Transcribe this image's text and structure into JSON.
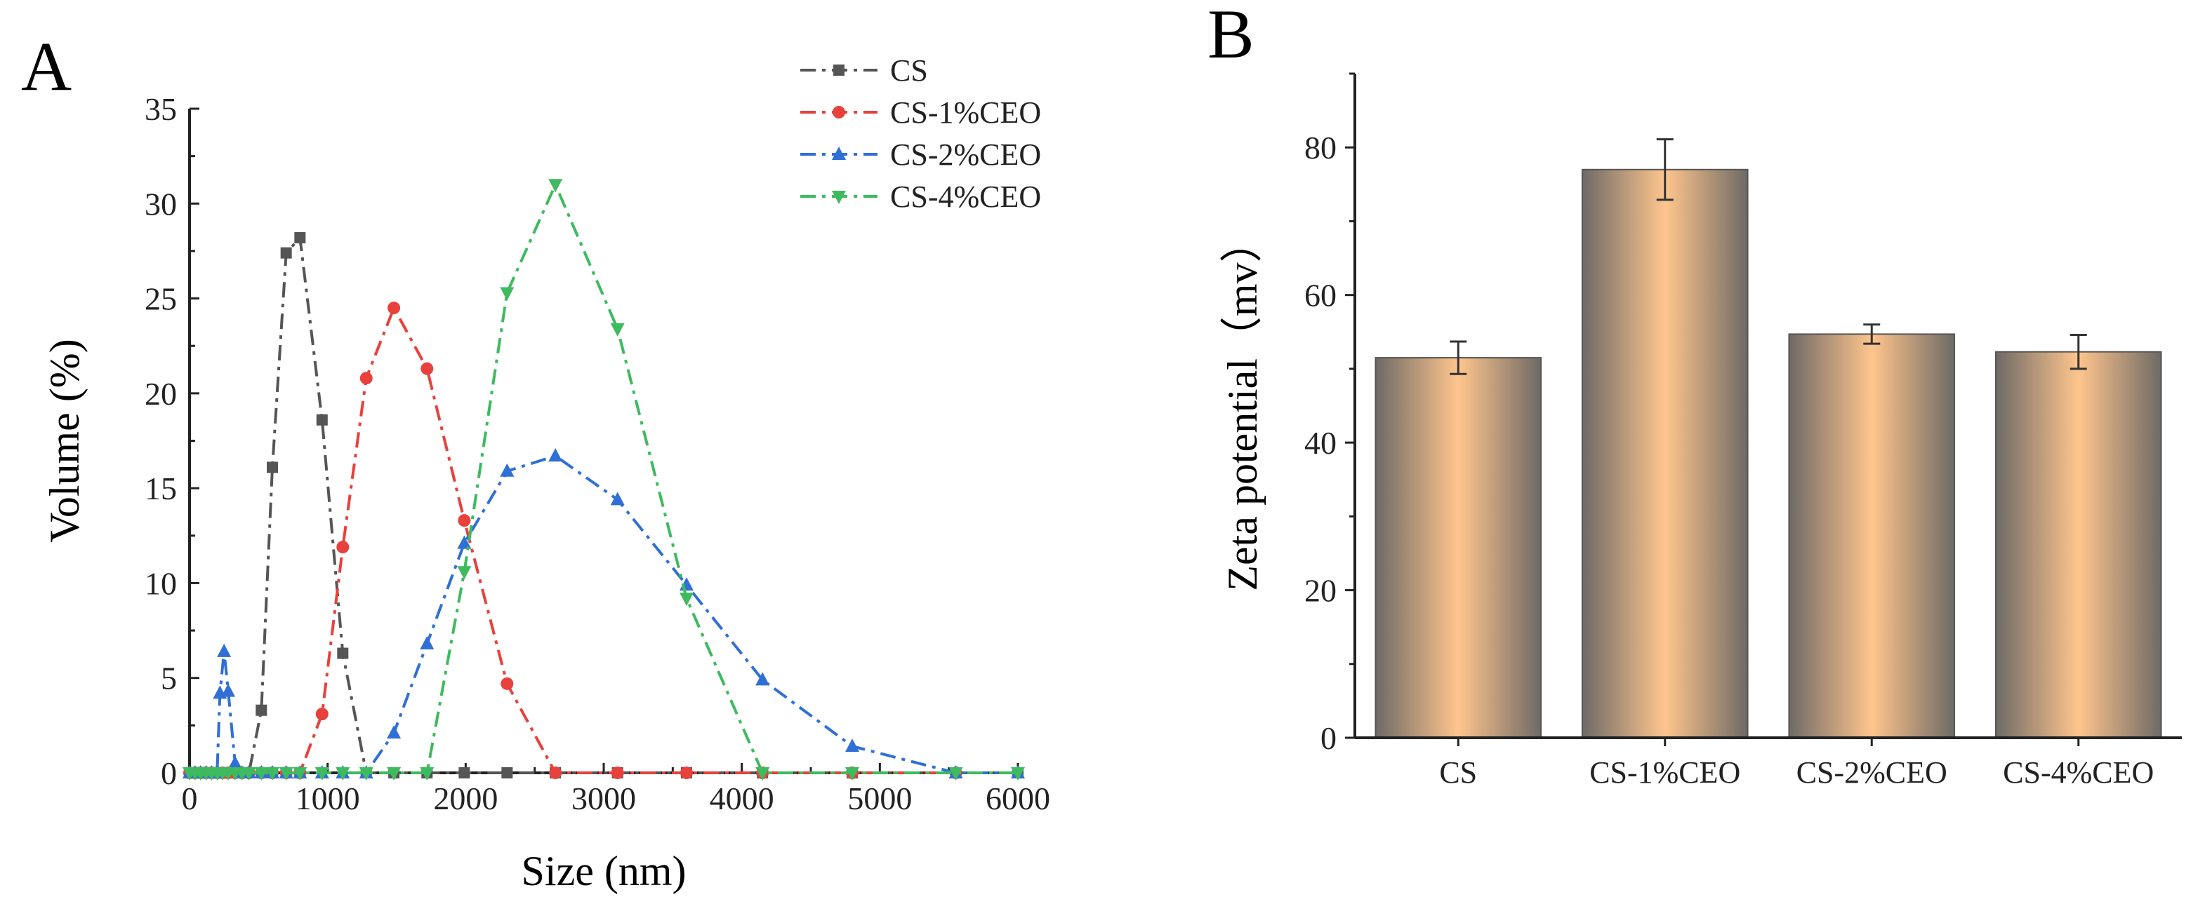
{
  "panels": {
    "a_label": "A",
    "b_label": "B"
  },
  "chart_data": [
    {
      "type": "line",
      "panel": "A",
      "title": "",
      "xlabel": "Size (nm)",
      "ylabel": "Volume (%)",
      "xlim": [
        0,
        6000
      ],
      "ylim": [
        0,
        35
      ],
      "xticks": [
        0,
        1000,
        2000,
        3000,
        4000,
        5000,
        6000
      ],
      "yticks": [
        0,
        5,
        10,
        15,
        20,
        25,
        30,
        35
      ],
      "legend_position": "top-right",
      "series": [
        {
          "name": "CS",
          "color": "#555555",
          "marker": "square",
          "points": [
            [
              0,
              0
            ],
            [
              40,
              0
            ],
            [
              80,
              0
            ],
            [
              120,
              0
            ],
            [
              160,
              0
            ],
            [
              200,
              0
            ],
            [
              240,
              0
            ],
            [
              280,
              0
            ],
            [
              330,
              0
            ],
            [
              380,
              0
            ],
            [
              430,
              0
            ],
            [
              520,
              3.3
            ],
            [
              600,
              16.1
            ],
            [
              700,
              27.4
            ],
            [
              800,
              28.2
            ],
            [
              960,
              18.6
            ],
            [
              1110,
              6.3
            ],
            [
              1280,
              0
            ],
            [
              1480,
              0
            ],
            [
              1720,
              0
            ],
            [
              1990,
              0
            ],
            [
              2300,
              0
            ],
            [
              2650,
              0
            ],
            [
              3100,
              0
            ],
            [
              3600,
              0
            ],
            [
              4150,
              0
            ],
            [
              4800,
              0
            ],
            [
              5550,
              0
            ],
            [
              6000,
              0
            ]
          ]
        },
        {
          "name": "CS-1%CEO",
          "color": "#e8413c",
          "marker": "circle",
          "points": [
            [
              0,
              0
            ],
            [
              40,
              0
            ],
            [
              80,
              0
            ],
            [
              120,
              0
            ],
            [
              160,
              0
            ],
            [
              200,
              0
            ],
            [
              240,
              0
            ],
            [
              280,
              0
            ],
            [
              330,
              0
            ],
            [
              380,
              0
            ],
            [
              430,
              0
            ],
            [
              520,
              0
            ],
            [
              600,
              0
            ],
            [
              700,
              0
            ],
            [
              800,
              0
            ],
            [
              960,
              3.1
            ],
            [
              1110,
              11.9
            ],
            [
              1280,
              20.8
            ],
            [
              1480,
              24.5
            ],
            [
              1720,
              21.3
            ],
            [
              1990,
              13.3
            ],
            [
              2300,
              4.7
            ],
            [
              2650,
              0
            ],
            [
              3100,
              0
            ],
            [
              3600,
              0
            ],
            [
              4150,
              0
            ],
            [
              4800,
              0
            ],
            [
              5550,
              0
            ]
          ]
        },
        {
          "name": "CS-2%CEO",
          "color": "#2f6fd6",
          "marker": "triangle-up",
          "points": [
            [
              0,
              0
            ],
            [
              40,
              0
            ],
            [
              80,
              0
            ],
            [
              120,
              0
            ],
            [
              160,
              0
            ],
            [
              200,
              0
            ],
            [
              220,
              4.2
            ],
            [
              250,
              6.4
            ],
            [
              280,
              4.3
            ],
            [
              330,
              0.5
            ],
            [
              380,
              0
            ],
            [
              430,
              0
            ],
            [
              520,
              0
            ],
            [
              600,
              0
            ],
            [
              700,
              0
            ],
            [
              800,
              0
            ],
            [
              960,
              0
            ],
            [
              1110,
              0
            ],
            [
              1280,
              0
            ],
            [
              1480,
              2.1
            ],
            [
              1720,
              6.8
            ],
            [
              1990,
              12.1
            ],
            [
              2300,
              15.9
            ],
            [
              2650,
              16.7
            ],
            [
              3100,
              14.4
            ],
            [
              3600,
              9.9
            ],
            [
              4150,
              4.9
            ],
            [
              4800,
              1.4
            ],
            [
              5550,
              0
            ],
            [
              6000,
              0
            ]
          ]
        },
        {
          "name": "CS-4%CEO",
          "color": "#3dbb5e",
          "marker": "triangle-down",
          "points": [
            [
              0,
              0
            ],
            [
              40,
              0
            ],
            [
              80,
              0
            ],
            [
              120,
              0
            ],
            [
              160,
              0
            ],
            [
              200,
              0
            ],
            [
              240,
              0
            ],
            [
              280,
              0
            ],
            [
              330,
              0
            ],
            [
              380,
              0
            ],
            [
              430,
              0
            ],
            [
              520,
              0
            ],
            [
              600,
              0
            ],
            [
              700,
              0
            ],
            [
              800,
              0
            ],
            [
              960,
              0
            ],
            [
              1110,
              0
            ],
            [
              1280,
              0
            ],
            [
              1480,
              0
            ],
            [
              1720,
              0
            ],
            [
              1990,
              10.6
            ],
            [
              2300,
              25.3
            ],
            [
              2650,
              31.0
            ],
            [
              3100,
              23.4
            ],
            [
              3600,
              9.2
            ],
            [
              4150,
              0
            ],
            [
              4800,
              0
            ],
            [
              5550,
              0
            ],
            [
              6000,
              0
            ]
          ]
        }
      ]
    },
    {
      "type": "bar",
      "panel": "B",
      "title": "",
      "xlabel": "",
      "ylabel": "Zeta potential（mv）",
      "ylim": [
        0,
        90
      ],
      "yticks": [
        0,
        20,
        40,
        60,
        80
      ],
      "categories": [
        "CS",
        "CS-1%CEO",
        "CS-2%CEO",
        "CS-4%CEO"
      ],
      "values": [
        51.5,
        77.0,
        54.7,
        52.3
      ],
      "errors": [
        2.2,
        4.1,
        1.3,
        2.3
      ],
      "bar_gradient": [
        "#6e6a66",
        "#ffc58d"
      ]
    }
  ]
}
